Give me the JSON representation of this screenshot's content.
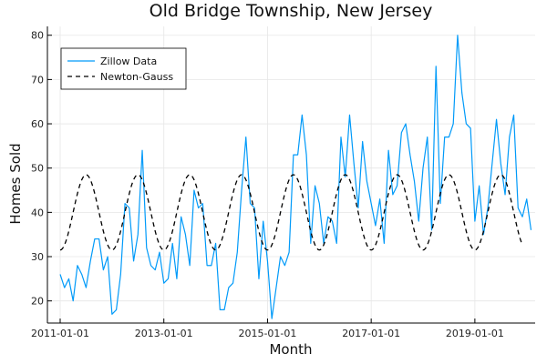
{
  "chart_data": {
    "type": "line",
    "title": "Old Bridge Township, New Jersey",
    "xlabel": "Month",
    "ylabel": "Homes Sold",
    "xlim": [
      "2011-01-01",
      "2019-12-01"
    ],
    "ylim": [
      15,
      82
    ],
    "x_ticks": [
      "2011-01-01",
      "2013-01-01",
      "2015-01-01",
      "2017-01-01",
      "2019-01-01"
    ],
    "y_ticks": [
      20,
      30,
      40,
      50,
      60,
      70,
      80
    ],
    "grid": true,
    "legend": {
      "position": "top-left",
      "entries": [
        "Zillow Data",
        "Newton-Gauss"
      ]
    },
    "series": [
      {
        "name": "Zillow Data",
        "style": "solid",
        "color": "#009AF9",
        "start": "2011-01",
        "frequency": "monthly",
        "values": [
          26,
          23,
          25,
          20,
          28,
          26,
          23,
          29,
          34,
          34,
          27,
          30,
          17,
          18,
          26,
          42,
          41,
          29,
          35,
          54,
          32,
          28,
          27,
          31,
          24,
          25,
          33,
          25,
          39,
          35,
          28,
          45,
          41,
          42,
          28,
          28,
          33,
          18,
          18,
          23,
          24,
          31,
          45,
          57,
          42,
          41,
          25,
          38,
          29,
          16,
          23,
          30,
          28,
          31,
          53,
          53,
          62,
          53,
          33,
          46,
          42,
          33,
          39,
          38,
          33,
          57,
          48,
          62,
          51,
          41,
          56,
          47,
          42,
          37,
          43,
          33,
          54,
          44,
          46,
          58,
          60,
          53,
          47,
          38,
          50,
          57,
          36,
          73,
          42,
          57,
          57,
          60,
          80,
          67,
          60,
          59,
          38,
          46,
          35,
          41,
          51,
          61,
          51,
          44,
          57,
          62,
          41,
          39,
          43,
          36
        ]
      },
      {
        "name": "Newton-Gauss",
        "style": "dashed",
        "color": "#000000",
        "model": {
          "type": "sinusoid",
          "mean": 40,
          "amplitude": 8.5,
          "period_months": 12,
          "peak_month_of_year": 7
        }
      }
    ]
  }
}
